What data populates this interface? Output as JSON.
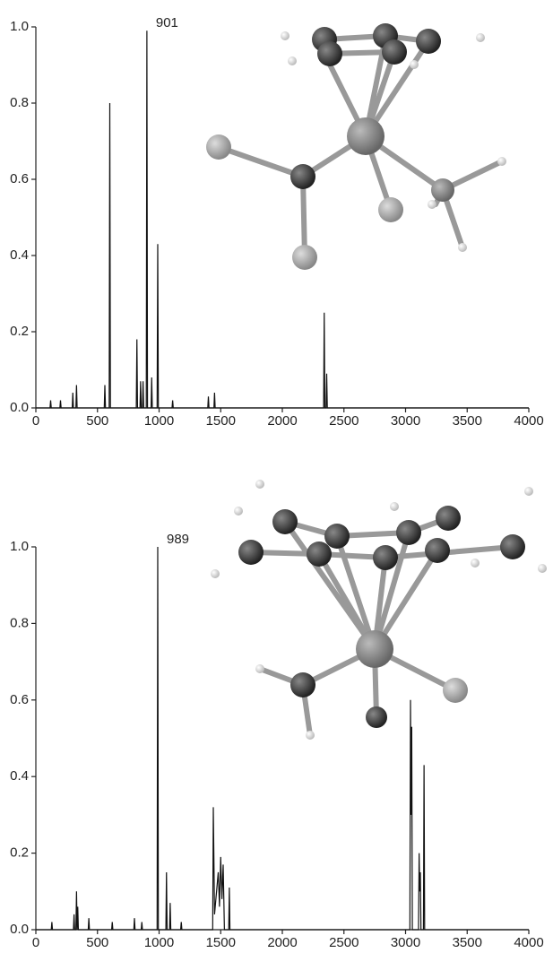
{
  "chart_data": [
    {
      "type": "line",
      "annotation": "901",
      "x": [
        0,
        115,
        120,
        125,
        195,
        200,
        205,
        295,
        300,
        305,
        325,
        330,
        335,
        555,
        560,
        565,
        595,
        600,
        605,
        815,
        820,
        825,
        845,
        850,
        855,
        865,
        870,
        875,
        896,
        901,
        906,
        935,
        940,
        945,
        984,
        989,
        994,
        1105,
        1110,
        1115,
        1395,
        1400,
        1405,
        1445,
        1450,
        1455,
        2335,
        2340,
        2345,
        2355,
        2360,
        2365,
        4000
      ],
      "series": [
        {
          "color": "#111111",
          "values": [
            0,
            0,
            0.02,
            0,
            0,
            0.02,
            0,
            0,
            0.04,
            0,
            0,
            0.06,
            0,
            0,
            0.06,
            0,
            0,
            0.8,
            0,
            0,
            0.18,
            0,
            0,
            0.07,
            0,
            0,
            0.07,
            0,
            0,
            0.99,
            0,
            0,
            0.08,
            0,
            0,
            0.43,
            0,
            0,
            0.02,
            0,
            0,
            0.03,
            0,
            0,
            0.04,
            0,
            0,
            0.25,
            0,
            0,
            0.09,
            0,
            0
          ]
        }
      ],
      "xlim": [
        0,
        4000
      ],
      "xticks": [
        0,
        500,
        1000,
        1500,
        2000,
        2500,
        3000,
        3500,
        4000
      ],
      "ylim": [
        0,
        1
      ],
      "yticks": [
        {
          "value": 0,
          "label": "0.0"
        },
        0.2,
        0.4,
        0.6,
        0.8,
        {
          "value": 1,
          "label": "1.0"
        }
      ]
    },
    {
      "type": "line",
      "annotation": "989",
      "x": [
        0,
        125,
        130,
        135,
        305,
        310,
        315,
        325,
        330,
        335,
        340,
        345,
        425,
        430,
        435,
        615,
        620,
        625,
        795,
        800,
        805,
        855,
        860,
        865,
        984,
        989,
        994,
        1055,
        1060,
        1065,
        1085,
        1090,
        1095,
        1175,
        1180,
        1185,
        1435,
        1440,
        1450,
        1480,
        1490,
        1500,
        1510,
        1520,
        1530,
        1565,
        1570,
        1575,
        3035,
        3040,
        3045,
        3050,
        3055,
        3105,
        3110,
        3115,
        3120,
        3125,
        3145,
        3150,
        3155,
        4000
      ],
      "series": [
        {
          "color": "#111111",
          "values": [
            0,
            0,
            0.02,
            0,
            0,
            0.04,
            0,
            0,
            0.1,
            0,
            0.06,
            0,
            0,
            0.03,
            0,
            0,
            0.02,
            0,
            0,
            0.03,
            0,
            0,
            0.02,
            0,
            0,
            1.0,
            0,
            0,
            0.15,
            0,
            0,
            0.07,
            0,
            0,
            0.02,
            0,
            0,
            0.32,
            0.04,
            0.15,
            0.06,
            0.19,
            0.08,
            0.17,
            0,
            0,
            0.11,
            0,
            0,
            0.6,
            0.3,
            0.53,
            0,
            0,
            0.2,
            0.1,
            0.15,
            0,
            0,
            0.43,
            0,
            0
          ]
        }
      ],
      "xlim": [
        0,
        4000
      ],
      "xticks": [
        0,
        500,
        1000,
        1500,
        2000,
        2500,
        3000,
        3500,
        4000
      ],
      "ylim": [
        0,
        1
      ],
      "yticks": [
        {
          "value": 0,
          "label": "0.0"
        },
        0.2,
        0.4,
        0.6,
        0.8,
        {
          "value": 1,
          "label": "1.0"
        }
      ]
    }
  ]
}
